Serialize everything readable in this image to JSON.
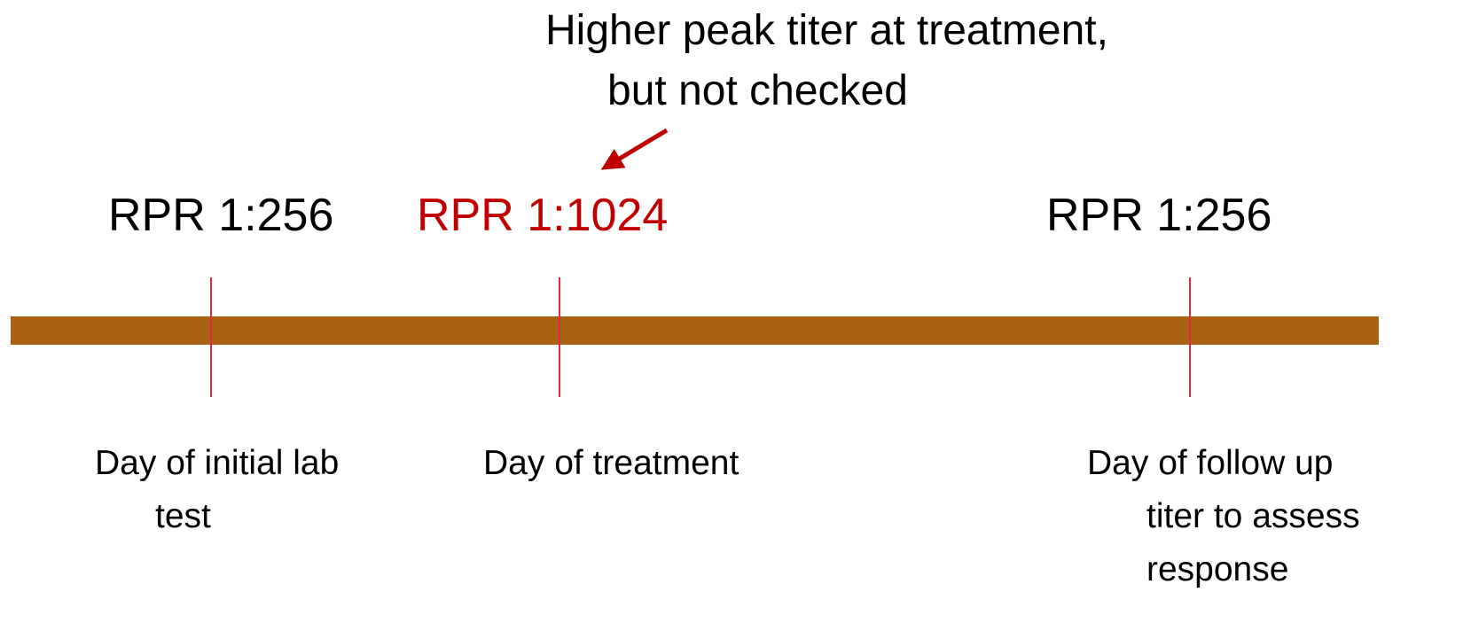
{
  "annotation": {
    "lines": [
      "Higher peak titer at treatment,",
      "but not checked"
    ],
    "color": "#c00000"
  },
  "timeline": {
    "color": "#a86212",
    "tick_color": "#e8264a"
  },
  "events": [
    {
      "titer": "RPR 1:256",
      "color": "#000000",
      "label_lines": [
        "Day of initial lab",
        "test"
      ]
    },
    {
      "titer": "RPR 1:1024",
      "color": "#c00000",
      "label_lines": [
        "Day of treatment"
      ]
    },
    {
      "titer": "RPR 1:256",
      "color": "#000000",
      "label_lines": [
        "Day of follow up",
        "titer to assess",
        "response"
      ]
    }
  ]
}
